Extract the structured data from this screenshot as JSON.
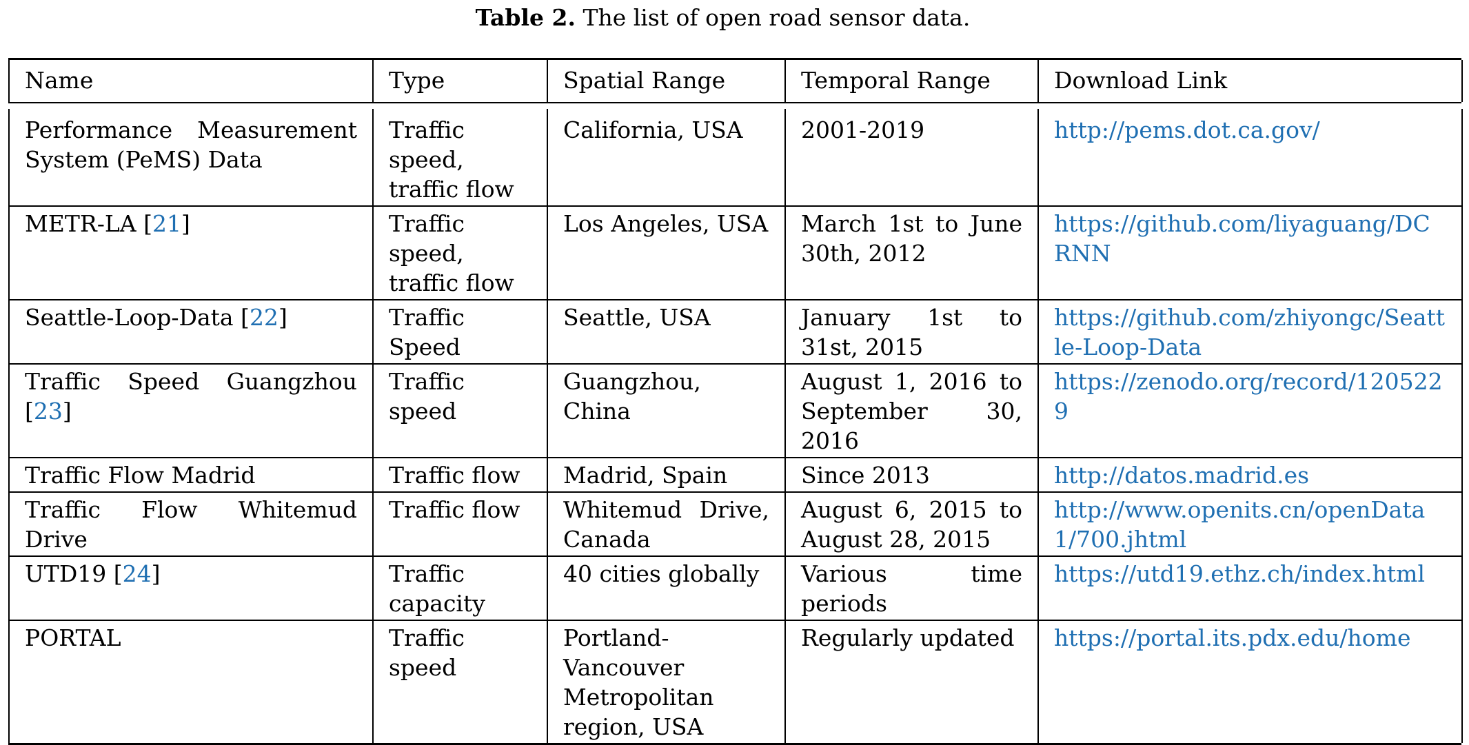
{
  "caption": {
    "label": "Table 2.",
    "text": " The list of open road sensor data."
  },
  "headers": [
    "Name",
    "Type",
    "Spatial Range",
    "Temporal Range",
    "Download Link"
  ],
  "rows": [
    {
      "name": "Performance Measurement System (PeMS) Data",
      "ref": "",
      "type": "Traffic speed, traffic flow",
      "spatial": "California, USA",
      "temporal": "2001-2019",
      "link": "http://pems.dot.ca.gov/"
    },
    {
      "name": "METR-LA",
      "ref": "21",
      "type": "Traffic speed, traffic flow",
      "spatial": "Los Angeles, USA",
      "temporal": "March 1st to June 30th, 2012",
      "link": "https://github.com/liyaguang/DCRNN"
    },
    {
      "name": "Seattle-Loop-Data",
      "ref": "22",
      "type": "Traffic Speed",
      "spatial": "Seattle, USA",
      "temporal": "January 1st to 31st, 2015",
      "link": "https://github.com/zhiyongc/Seattle-Loop-Data"
    },
    {
      "name": "Traffic Speed Guangzhou",
      "ref": "23",
      "type": "Traffic speed",
      "spatial": "Guangzhou, China",
      "temporal": "August 1, 2016 to September 30, 2016",
      "link": "https://zenodo.org/record/1205229"
    },
    {
      "name": "Traffic Flow Madrid",
      "ref": "",
      "type": "Traffic flow",
      "spatial": "Madrid, Spain",
      "temporal": "Since 2013",
      "link": "http://datos.madrid.es"
    },
    {
      "name": "Traffic Flow Whitemud Drive",
      "ref": "",
      "type": "Traffic flow",
      "spatial": "Whitemud Drive, Canada",
      "temporal": "August 6, 2015 to August 28, 2015",
      "link": "http://www.openits.cn/openData1/700.jhtml"
    },
    {
      "name": "UTD19",
      "ref": "24",
      "type": "Traffic capacity",
      "spatial": "40 cities globally",
      "temporal": "Various time periods",
      "link": "https://utd19.ethz.ch/index.html"
    },
    {
      "name": "PORTAL",
      "ref": "",
      "type": "Traffic speed",
      "spatial": "Portland-Vancouver Metropolitan region, USA",
      "temporal": "Regularly updated",
      "link": "https://portal.its.pdx.edu/home"
    }
  ]
}
